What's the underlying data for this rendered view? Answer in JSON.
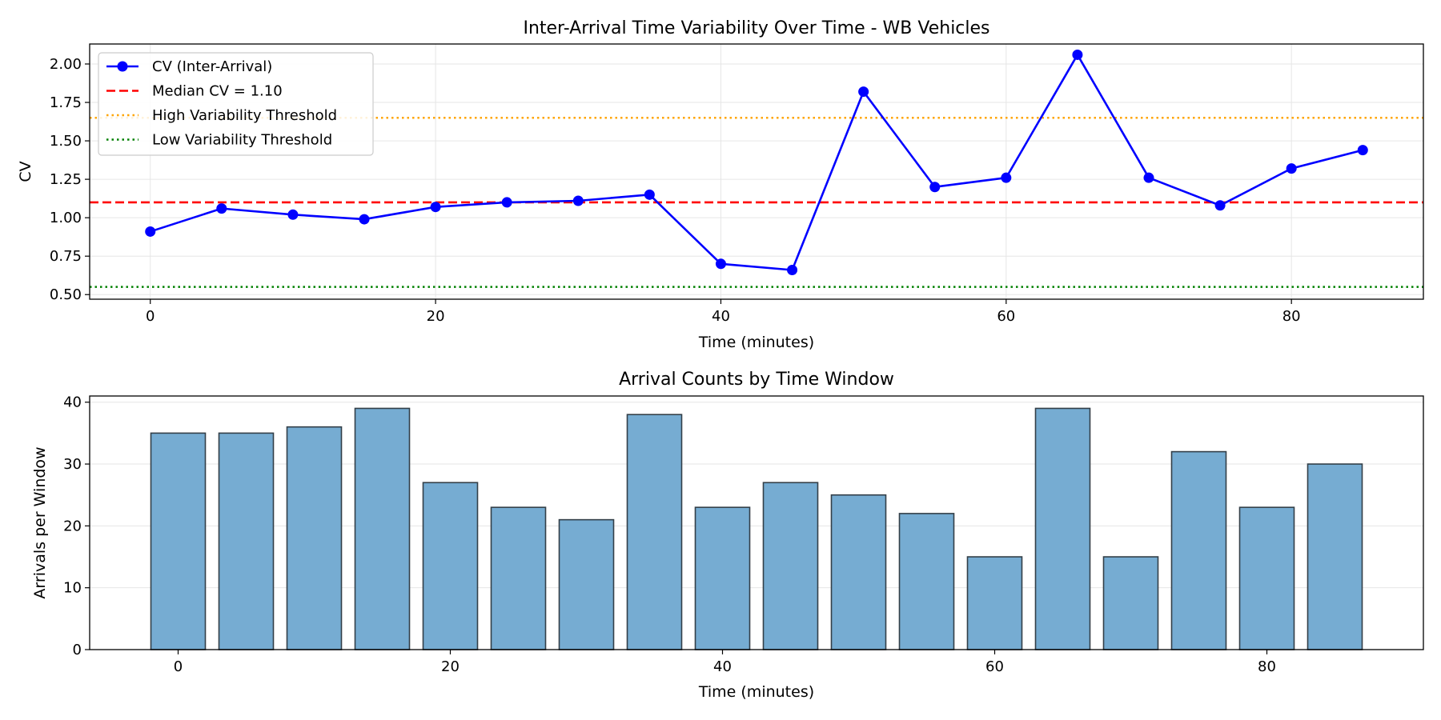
{
  "chart_data": [
    {
      "type": "line",
      "title": "Inter-Arrival Time Variability Over Time - WB Vehicles",
      "xlabel": "Time (minutes)",
      "ylabel": "CV",
      "xlim": [
        -4.25,
        89.25
      ],
      "ylim": [
        0.47,
        2.13
      ],
      "xticks": [
        0,
        20,
        40,
        60,
        80
      ],
      "yticks": [
        0.5,
        0.75,
        1.0,
        1.25,
        1.5,
        1.75,
        2.0
      ],
      "ytick_labels": [
        "0.50",
        "0.75",
        "1.00",
        "1.25",
        "1.50",
        "1.75",
        "2.00"
      ],
      "grid": true,
      "legend_position": "upper-left",
      "series": [
        {
          "name": "CV (Inter-Arrival)",
          "color": "#0000ff",
          "style": "solid-with-markers",
          "x": [
            0,
            5,
            10,
            15,
            20,
            25,
            30,
            35,
            40,
            45,
            50,
            55,
            60,
            65,
            70,
            75,
            80,
            85
          ],
          "y": [
            0.91,
            1.06,
            1.02,
            0.99,
            1.07,
            1.1,
            1.11,
            1.15,
            0.7,
            0.66,
            1.82,
            1.2,
            1.26,
            2.06,
            1.26,
            1.08,
            1.32,
            1.44
          ]
        }
      ],
      "reference_lines": [
        {
          "name": "Median CV = 1.10",
          "y": 1.1,
          "color": "#ff0000",
          "style": "dashed"
        },
        {
          "name": "High Variability Threshold",
          "y": 1.65,
          "color": "#ffa500",
          "style": "dotted"
        },
        {
          "name": "Low Variability Threshold",
          "y": 0.55,
          "color": "#008000",
          "style": "dotted"
        }
      ]
    },
    {
      "type": "bar",
      "title": "Arrival Counts by Time Window",
      "xlabel": "Time (minutes)",
      "ylabel": "Arrivals per Window",
      "xlim": [
        -6.5,
        91.5
      ],
      "ylim": [
        0,
        41
      ],
      "xticks": [
        0,
        20,
        40,
        60,
        80
      ],
      "yticks": [
        0,
        10,
        20,
        30,
        40
      ],
      "bar_width": 4,
      "grid": "y",
      "bar_color": "#76acd2",
      "edge_color": "#333f48",
      "x": [
        0,
        5,
        10,
        15,
        20,
        25,
        30,
        35,
        40,
        45,
        50,
        55,
        60,
        65,
        70,
        75,
        80,
        85
      ],
      "values": [
        35,
        35,
        36,
        39,
        27,
        23,
        21,
        38,
        23,
        27,
        25,
        22,
        15,
        39,
        15,
        32,
        23,
        30
      ]
    }
  ]
}
